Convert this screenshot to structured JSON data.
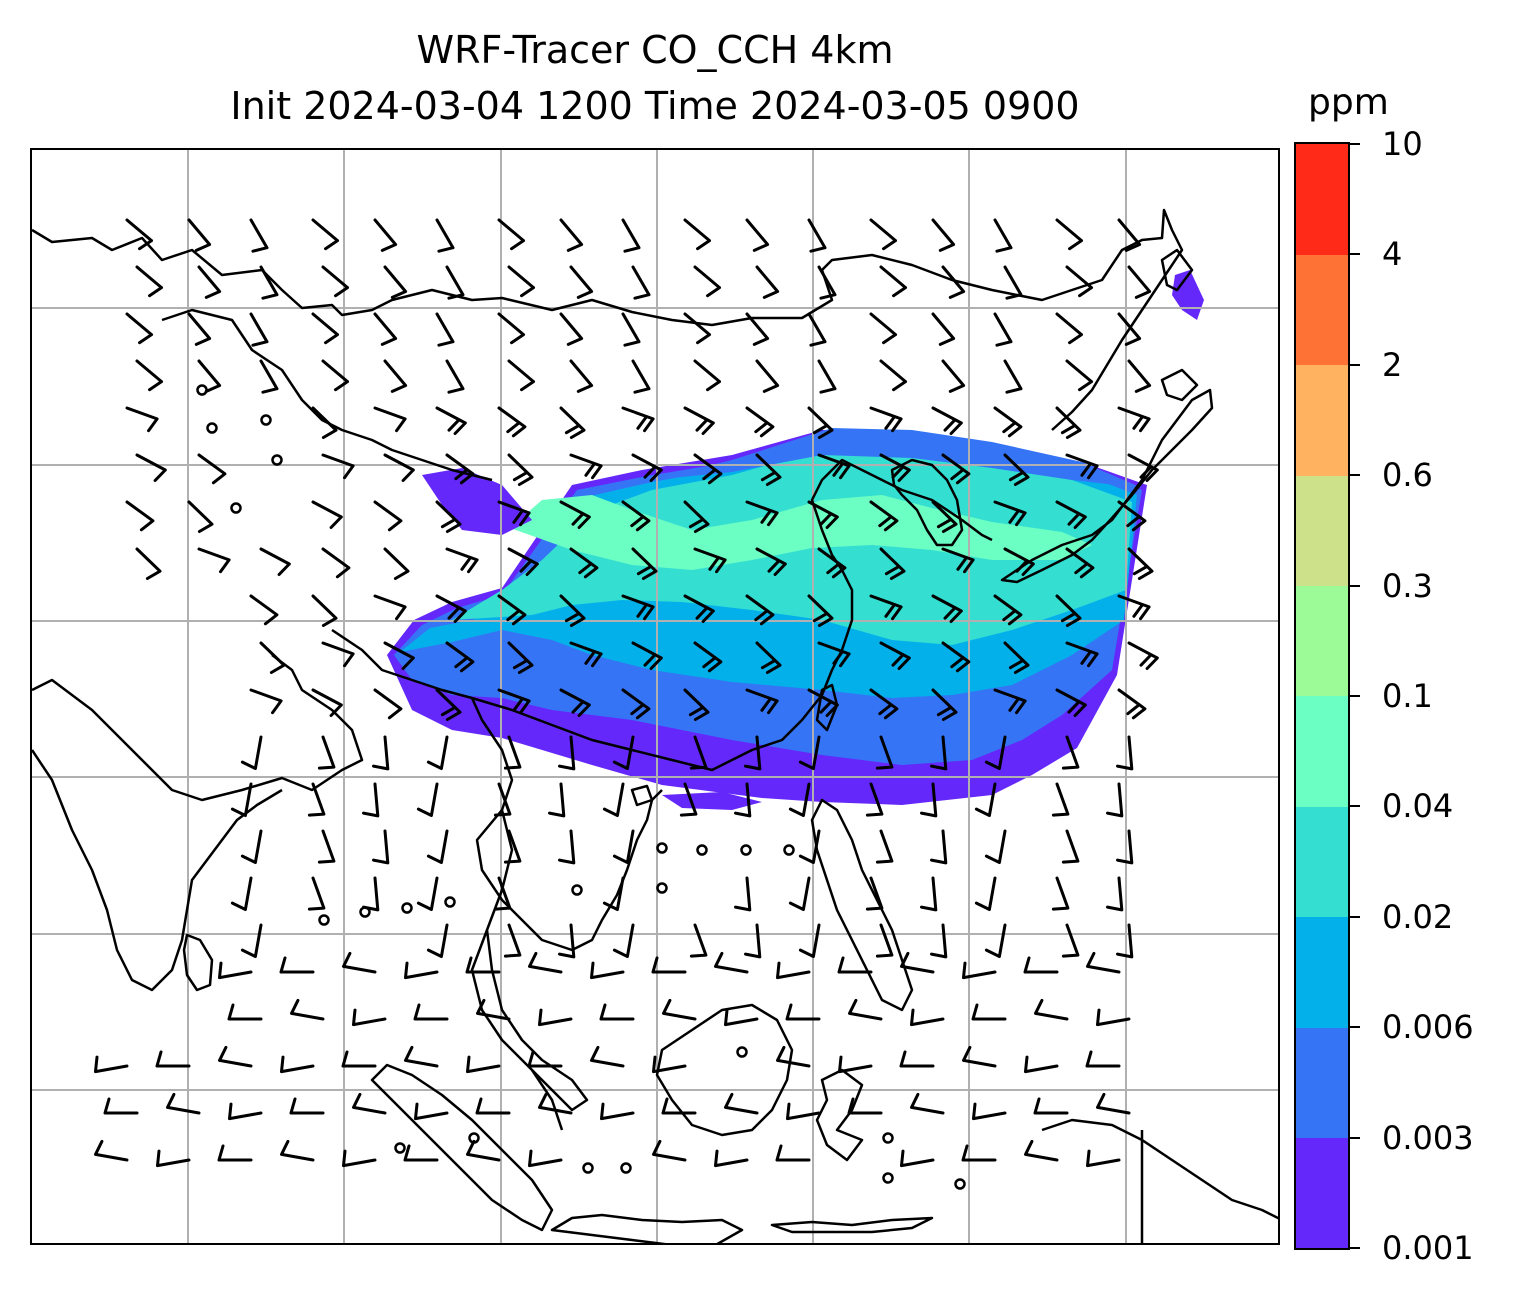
{
  "title": {
    "line1": "WRF-Tracer CO_CCH 4km",
    "line2": "Init 2024-03-04 1200 Time 2024-03-05 0900"
  },
  "colorbar": {
    "unit": "ppm",
    "labels": [
      "10",
      "4",
      "2",
      "0.6",
      "0.3",
      "0.1",
      "0.04",
      "0.02",
      "0.006",
      "0.003",
      "0.001"
    ],
    "colors": [
      "#6528fb",
      "#3575f5",
      "#04b0ea",
      "#34dfd2",
      "#6bffc3",
      "#9cfb96",
      "#cce189",
      "#ffb360",
      "#ff7235",
      "#ff2b18"
    ]
  },
  "map": {
    "land_outline_color": "#000000",
    "gridline_color": "#b0b0b0",
    "wind_barb_color": "#000000"
  }
}
